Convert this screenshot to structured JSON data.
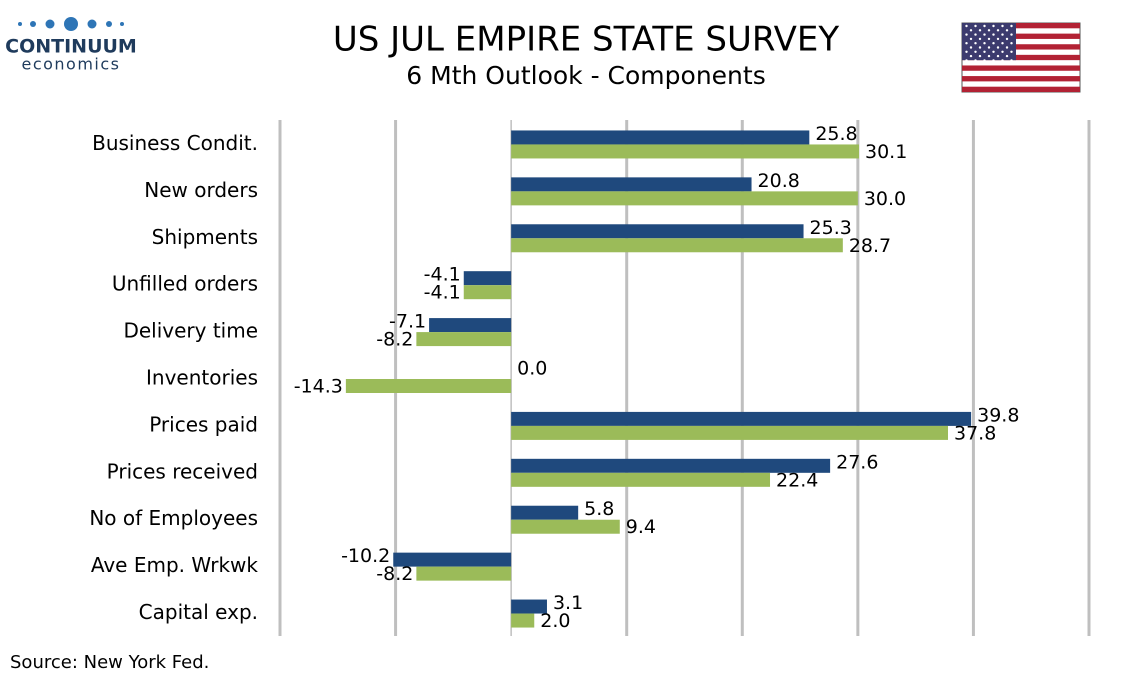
{
  "chart_data": {
    "type": "barh",
    "title": "US JUL EMPIRE STATE SURVEY",
    "subtitle": "6 Mth Outlook - Components",
    "source": "Source: New York Fed.",
    "logo": {
      "name": "CONTINUUM",
      "tagline": "economics"
    },
    "categories": [
      "Business Condit.",
      "New orders",
      "Shipments",
      "Unfilled orders",
      "Delivery time",
      "Inventories",
      "Prices paid",
      "Prices received",
      "No of Employees",
      "Ave Emp. Wrkwk",
      "Capital exp."
    ],
    "series": [
      {
        "color": "#1f497d",
        "values": [
          25.8,
          20.8,
          25.3,
          -4.1,
          -7.1,
          0.0,
          39.8,
          27.6,
          5.8,
          -10.2,
          3.1
        ],
        "value_labels": [
          "25.8",
          "20.8",
          "25.3",
          "-4.1",
          "-7.1",
          "0.0",
          "39.8",
          "27.6",
          "5.8",
          "-10.2",
          "3.1"
        ]
      },
      {
        "color": "#9bbb59",
        "values": [
          30.1,
          30.0,
          28.7,
          -4.1,
          -8.2,
          -14.3,
          37.8,
          22.4,
          9.4,
          -8.2,
          2.0
        ],
        "value_labels": [
          "30.1",
          "30.0",
          "28.7",
          "-4.1",
          "-8.2",
          "-14.3",
          "37.8",
          "22.4",
          "9.4",
          "-8.2",
          "2.0"
        ]
      }
    ],
    "xlim": [
      -20,
      50
    ],
    "xticks": [
      -20,
      -10,
      0,
      10,
      20,
      30,
      40,
      50
    ],
    "grid": true
  }
}
